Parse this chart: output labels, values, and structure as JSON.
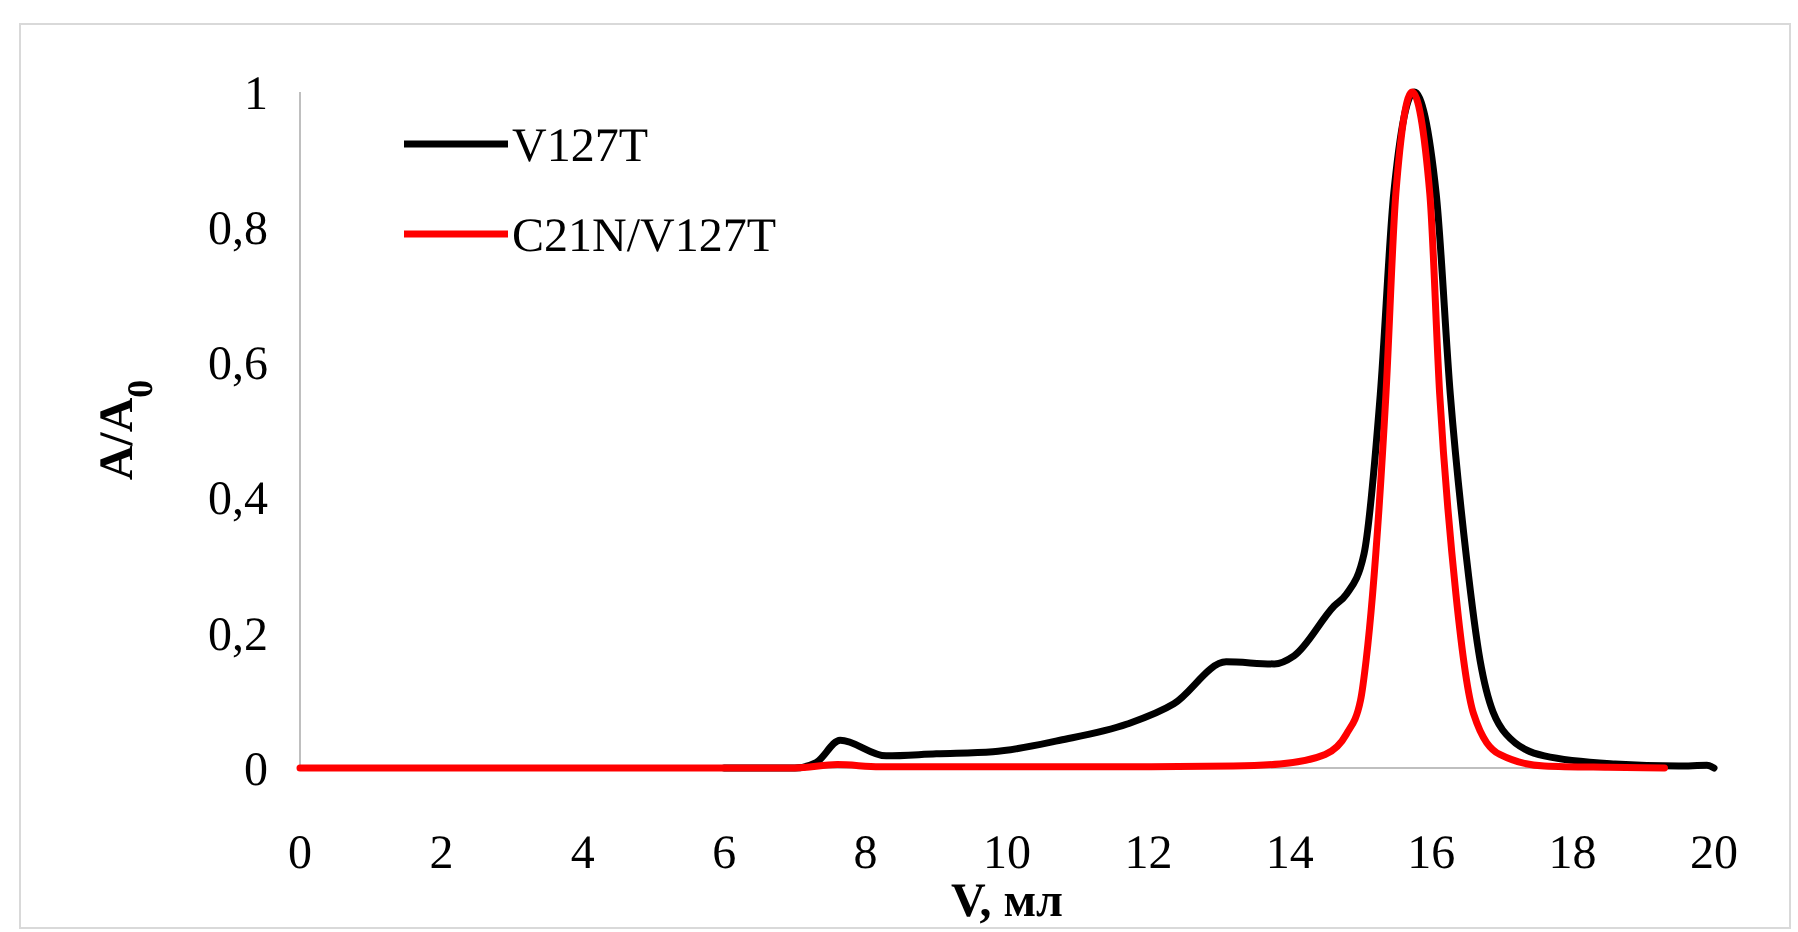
{
  "chart_data": {
    "type": "line",
    "xlabel": "V, мл",
    "ylabel": "A/A$_{0}$",
    "xlim": [
      0,
      20
    ],
    "ylim": [
      0,
      1
    ],
    "xticks": [
      0,
      2,
      4,
      6,
      8,
      10,
      12,
      14,
      16,
      18,
      20
    ],
    "yticks": [
      {
        "value": 0,
        "label": "0"
      },
      {
        "value": 0.2,
        "label": "0,2"
      },
      {
        "value": 0.4,
        "label": "0,4"
      },
      {
        "value": 0.6,
        "label": "0,6"
      },
      {
        "value": 0.8,
        "label": "0,8"
      },
      {
        "value": 1,
        "label": "1"
      }
    ],
    "grid": false,
    "legend": "top left",
    "line_style": "solid",
    "series": [
      {
        "name": "V127T",
        "color": "#000000",
        "x": [
          6,
          7,
          7.3,
          7.64,
          8.29,
          9,
          9.8,
          10.75,
          11.7,
          12.36,
          13.1,
          13.78,
          14.06,
          14.63,
          14.8,
          15.05,
          15.28,
          15.47,
          15.76,
          16.07,
          16.27,
          16.5,
          16.69,
          17.06,
          17.6,
          18.6,
          19.5,
          19.9,
          20
        ],
        "values": [
          0,
          0,
          0.008,
          0.041,
          0.018,
          0.021,
          0.024,
          0.041,
          0.065,
          0.095,
          0.157,
          0.154,
          0.166,
          0.24,
          0.257,
          0.317,
          0.553,
          0.85,
          1,
          0.85,
          0.553,
          0.31,
          0.16,
          0.05,
          0.018,
          0.006,
          0.003,
          0.004,
          0
        ]
      },
      {
        "name": "C21N/V127T",
        "color": "#ff0000",
        "x": [
          0,
          2,
          4,
          6,
          7,
          7.6,
          8.2,
          10,
          12,
          13.2,
          13.86,
          14.5,
          14.8,
          15.0,
          15.08,
          15.36,
          15.5,
          15.73,
          15.98,
          16.12,
          16.35,
          16.6,
          16.97,
          17.6,
          18.5,
          19.3
        ],
        "values": [
          0,
          0,
          0,
          0,
          0,
          0.005,
          0.002,
          0.002,
          0.002,
          0.003,
          0.006,
          0.02,
          0.05,
          0.1,
          0.16,
          0.553,
          0.85,
          1,
          0.85,
          0.553,
          0.257,
          0.08,
          0.02,
          0.003,
          0.001,
          0
        ]
      }
    ]
  }
}
